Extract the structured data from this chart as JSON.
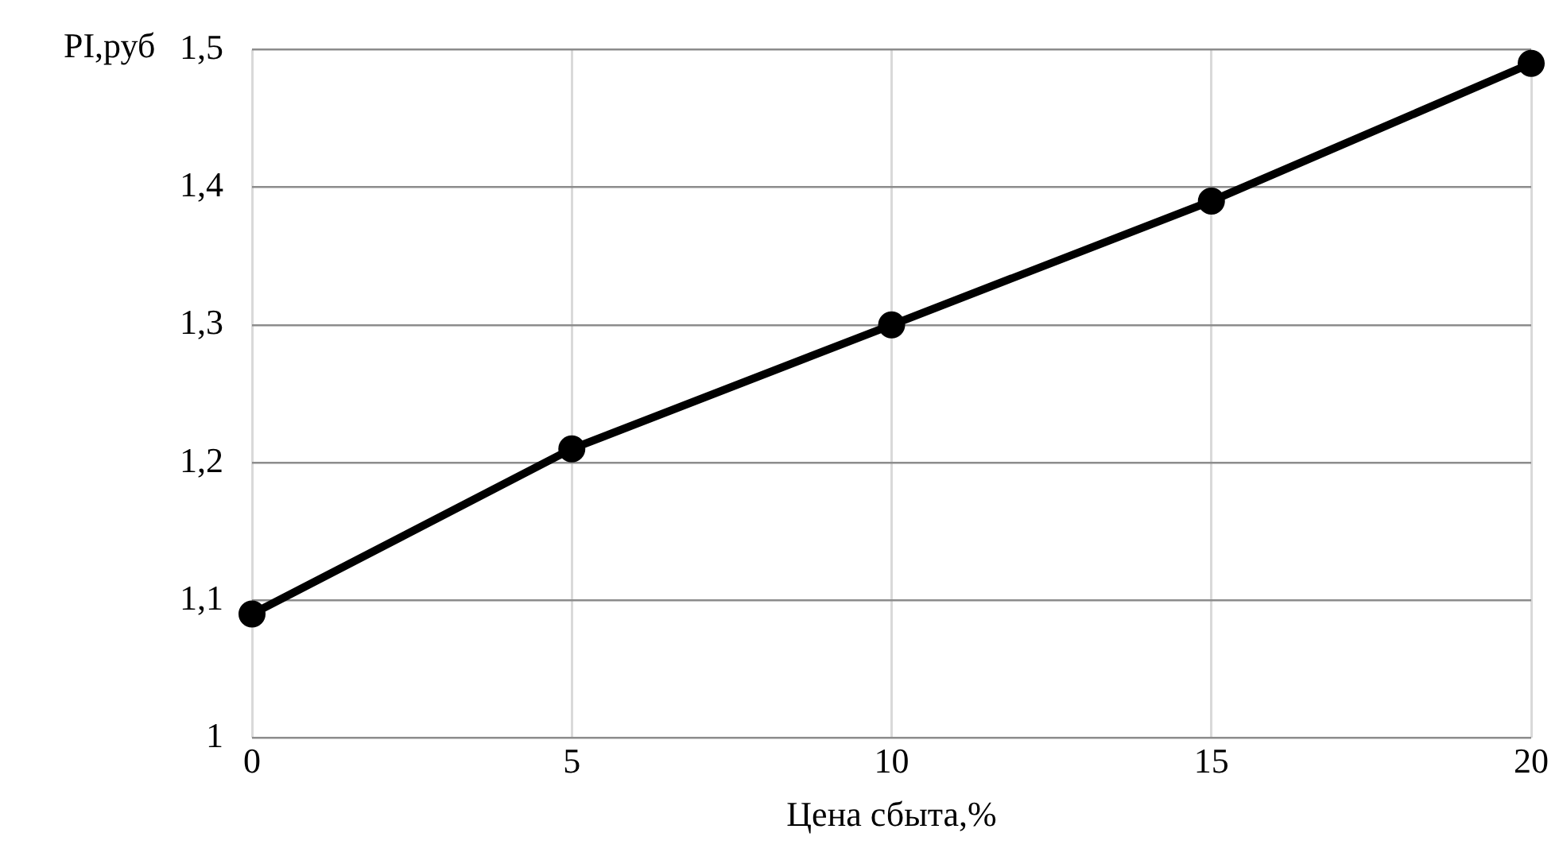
{
  "chart_data": {
    "type": "line",
    "xlabel": "Цена сбыта,%",
    "ylabel": "PI,руб",
    "x": [
      0,
      5,
      10,
      15,
      20
    ],
    "series": [
      {
        "color": "#000000",
        "values": [
          1.09,
          1.21,
          1.3,
          1.39,
          1.49
        ]
      }
    ],
    "xlim": [
      0,
      20
    ],
    "xticks": [
      0,
      5,
      10,
      15,
      20
    ],
    "ylim": [
      1,
      1.5
    ],
    "yticks": [
      1,
      {
        "value": 1.1,
        "label": "1,1"
      },
      {
        "value": 1.2,
        "label": "1,2"
      },
      {
        "value": 1.3,
        "label": "1,3"
      },
      {
        "value": 1.4,
        "label": "1,4"
      },
      {
        "value": 1.5,
        "label": "1,5"
      }
    ],
    "grid": true,
    "legend": false,
    "marker": "circle",
    "line_style": "solid"
  }
}
